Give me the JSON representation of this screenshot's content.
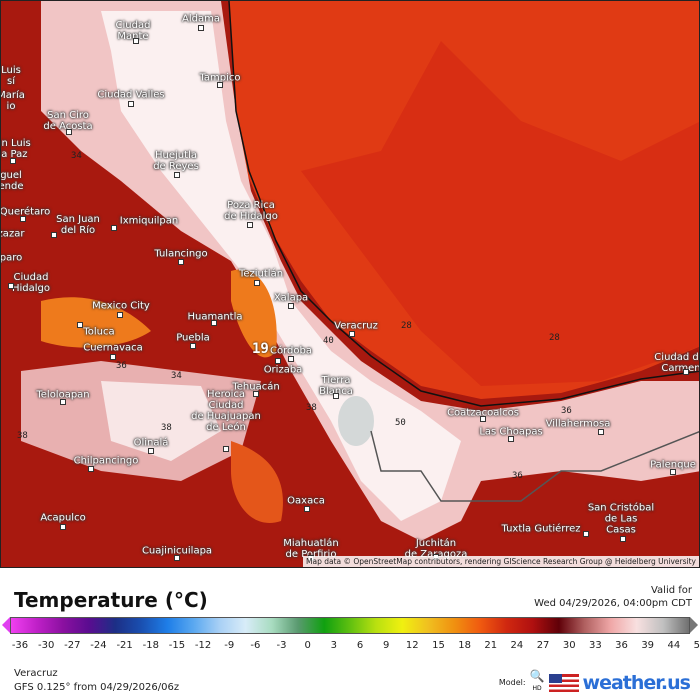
{
  "map": {
    "cities": [
      "Ciudad\nMante",
      "Aldama",
      "Tampico",
      "Ciudad Valles",
      "San Ciro\nde Acosta",
      "Huejutla\nde Reyes",
      "Poza Rica\nde Hidalgo",
      "Querétaro",
      "San Juan\ndel Río",
      "Ixmiquilpan",
      "Tulancingo",
      "Teziutlán",
      "Ciudad\nHidalgo",
      "Mexico City",
      "Xalapa",
      "Huamantla",
      "Toluca",
      "Puebla",
      "Cuernavaca",
      "Córdoba",
      "Orizaba",
      "Tehuacán",
      "Veracruz",
      "Tierra\nBlanca",
      "Teloloapan",
      "Heroica\nCiudad\nde Huajuapan\nde León",
      "Olinalá",
      "Chilpancingo",
      "Oaxaca",
      "Acapulco",
      "Cuajinicuilapa",
      "Miahuatlán\nde Porfirio",
      "Juchitán\nde Zaragoza",
      "Coatzacoalcos",
      "Las Choapas",
      "Villahermosa",
      "Palenque",
      "San Cristóbal\nde Las\nCasas",
      "Tuxtla Gutiérrez",
      "Ciudad del\nCarmen",
      "Luis\nsí",
      "María\nio",
      "an Luis\nla Paz",
      "guel\nende",
      "zazar",
      "paro"
    ],
    "contour_labels": [
      "28",
      "28",
      "40",
      "38",
      "36",
      "34",
      "38",
      "36",
      "36",
      "34",
      "19",
      "50",
      "38"
    ],
    "attribution": "Map data © OpenStreetMap contributors, rendering GIScience Research Group @ Heidelberg University"
  },
  "legend": {
    "title": "Temperature (°C)",
    "valid_label": "Valid for",
    "valid_time": "Wed 04/29/2026, 04:00pm CDT",
    "ticks": [
      "-36",
      "-30",
      "-27",
      "-24",
      "-21",
      "-18",
      "-15",
      "-12",
      "-9",
      "-6",
      "-3",
      "0",
      "3",
      "6",
      "9",
      "12",
      "15",
      "18",
      "21",
      "24",
      "27",
      "30",
      "33",
      "36",
      "39",
      "44",
      "50"
    ],
    "colors": [
      "#f040f0",
      "#c020c8",
      "#8a10a0",
      "#5a0c90",
      "#1c2f86",
      "#1a4fb0",
      "#1e7ee8",
      "#5aa8f0",
      "#a9d0f5",
      "#d8ecf8",
      "#a8dcc0",
      "#5a9a70",
      "#10a010",
      "#60c010",
      "#b8e010",
      "#f0f010",
      "#f0c020",
      "#f09010",
      "#f05a10",
      "#d02810",
      "#b01010",
      "#600008",
      "#b06060",
      "#f0a8a8",
      "#f8e0e0",
      "#c0c0c0",
      "#707070"
    ]
  },
  "footer": {
    "location": "Veracruz",
    "model_run": "GFS 0.125° from  04/29/2026/06z",
    "model_label": "Model:",
    "hd_label": "HD",
    "brand": "weather.us"
  },
  "colors": {
    "ocean": "#e03a14",
    "land_hot": "#a8190f",
    "highland": "#f6dede",
    "brand": "#2b6fd6"
  }
}
